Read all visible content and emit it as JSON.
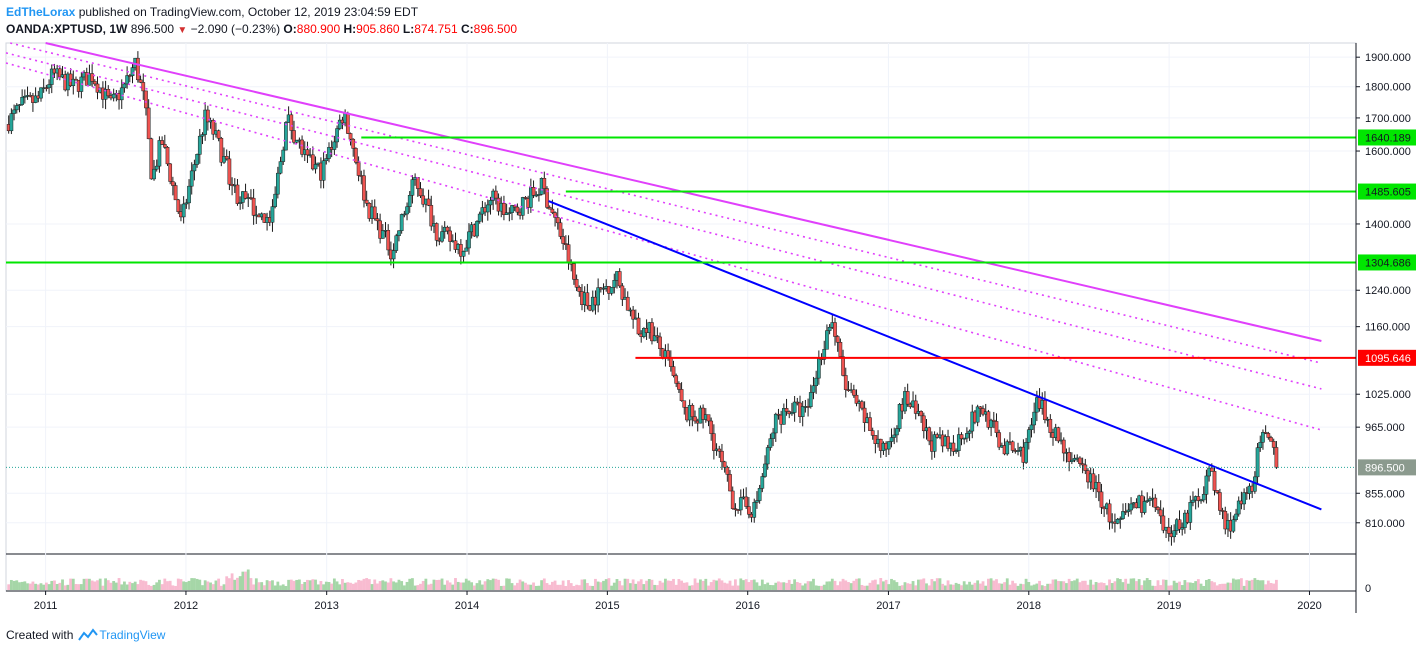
{
  "header": {
    "author": "EdTheLorax",
    "published": "published on TradingView.com, October 12, 2019 23:04:59 EDT",
    "symbol": "OANDA:XPTUSD, 1W",
    "last": "896.500",
    "change": "−2.090 (−0.23%)",
    "o_label": "O:",
    "o_val": "880.900",
    "h_label": "H:",
    "h_val": "905.860",
    "l_label": "L:",
    "l_val": "874.751",
    "c_label": "C:",
    "c_val": "896.500"
  },
  "footer": {
    "created_with": "Created with",
    "brand": "TradingView"
  },
  "colors": {
    "bull": "#26a69a",
    "bear": "#ef5350",
    "support": "#00e600",
    "resistance": "#ff0000",
    "fan": "#e040fb",
    "trend": "#0000ff",
    "grid": "#f0f3fa"
  },
  "chart_data": {
    "type": "candlestick",
    "symbol": "OANDA:XPTUSD",
    "interval": "1W",
    "last_price": 896.5,
    "x_axis": {
      "type": "date",
      "range": [
        "2010-09-20",
        "2020-05-01"
      ],
      "tick_labels": [
        "2011",
        "2012",
        "2013",
        "2014",
        "2015",
        "2016",
        "2017",
        "2018",
        "2019",
        "2020"
      ]
    },
    "y_axis": {
      "scale": "log",
      "range": [
        765,
        1950
      ],
      "tick_labels": [
        "1900.000",
        "1800.000",
        "1700.000",
        "1600.000",
        "1400.000",
        "1240.000",
        "1160.000",
        "1025.000",
        "965.000",
        "855.000",
        "810.000"
      ]
    },
    "volume_axis": {
      "tick_labels": [
        "0"
      ]
    },
    "price_path": [
      [
        "2010-09-20",
        1680
      ],
      [
        "2010-11-01",
        1740
      ],
      [
        "2010-12-15",
        1760
      ],
      [
        "2011-01-20",
        1840
      ],
      [
        "2011-03-15",
        1800
      ],
      [
        "2011-05-01",
        1840
      ],
      [
        "2011-06-20",
        1740
      ],
      [
        "2011-07-25",
        1800
      ],
      [
        "2011-08-22",
        1880
      ],
      [
        "2011-09-15",
        1750
      ],
      [
        "2011-10-05",
        1520
      ],
      [
        "2011-10-30",
        1630
      ],
      [
        "2011-12-20",
        1400
      ],
      [
        "2012-02-20",
        1700
      ],
      [
        "2012-03-15",
        1650
      ],
      [
        "2012-05-10",
        1480
      ],
      [
        "2012-07-20",
        1420
      ],
      [
        "2012-08-10",
        1400
      ],
      [
        "2012-09-20",
        1700
      ],
      [
        "2012-11-10",
        1570
      ],
      [
        "2012-12-20",
        1540
      ],
      [
        "2013-02-15",
        1720
      ],
      [
        "2013-04-15",
        1450
      ],
      [
        "2013-06-20",
        1330
      ],
      [
        "2013-08-20",
        1520
      ],
      [
        "2013-10-15",
        1380
      ],
      [
        "2013-12-20",
        1340
      ],
      [
        "2014-03-05",
        1470
      ],
      [
        "2014-04-20",
        1420
      ],
      [
        "2014-07-15",
        1500
      ],
      [
        "2014-09-10",
        1350
      ],
      [
        "2014-10-10",
        1250
      ],
      [
        "2014-11-10",
        1210
      ],
      [
        "2015-01-25",
        1270
      ],
      [
        "2015-03-25",
        1140
      ],
      [
        "2015-04-10",
        1170
      ],
      [
        "2015-06-10",
        1080
      ],
      [
        "2015-07-20",
        990
      ],
      [
        "2015-09-15",
        980
      ],
      [
        "2015-11-25",
        840
      ],
      [
        "2016-01-20",
        830
      ],
      [
        "2016-03-15",
        980
      ],
      [
        "2016-04-20",
        1000
      ],
      [
        "2016-06-01",
        990
      ],
      [
        "2016-08-05",
        1180
      ],
      [
        "2016-09-10",
        1040
      ],
      [
        "2016-11-15",
        960
      ],
      [
        "2016-12-20",
        920
      ],
      [
        "2017-02-15",
        1020
      ],
      [
        "2017-04-20",
        940
      ],
      [
        "2017-06-15",
        930
      ],
      [
        "2017-09-01",
        1000
      ],
      [
        "2017-10-25",
        930
      ],
      [
        "2017-12-20",
        920
      ],
      [
        "2018-01-25",
        1010
      ],
      [
        "2018-03-15",
        950
      ],
      [
        "2018-05-01",
        900
      ],
      [
        "2018-06-10",
        880
      ],
      [
        "2018-08-15",
        800
      ],
      [
        "2018-10-01",
        840
      ],
      [
        "2018-11-20",
        840
      ],
      [
        "2018-12-20",
        790
      ],
      [
        "2019-02-15",
        820
      ],
      [
        "2019-03-20",
        850
      ],
      [
        "2019-04-15",
        890
      ],
      [
        "2019-05-30",
        800
      ],
      [
        "2019-07-10",
        840
      ],
      [
        "2019-08-01",
        860
      ],
      [
        "2019-08-30",
        950
      ],
      [
        "2019-09-25",
        925
      ],
      [
        "2019-10-12",
        896.5
      ]
    ],
    "horizontal_levels": [
      {
        "value": 1640.189,
        "label": "1640.189",
        "color": "#00e600",
        "from": "2013-04-01"
      },
      {
        "value": 1485.605,
        "label": "1485.605",
        "color": "#00e600",
        "from": "2014-09-15"
      },
      {
        "value": 1304.686,
        "label": "1304.686",
        "color": "#00e600",
        "from": "2010-09-20"
      },
      {
        "value": 1095.646,
        "label": "1095.646",
        "color": "#ff0000",
        "from": "2015-03-15"
      }
    ],
    "trendlines": [
      {
        "style": "solid",
        "color": "#e040fb",
        "p1": [
          "2011-01-01",
          1950
        ],
        "p2": [
          "2020-02-01",
          1130
        ]
      },
      {
        "style": "dotted",
        "color": "#e040fb",
        "p1": [
          "2010-10-01",
          1950
        ],
        "p2": [
          "2020-02-01",
          1085
        ]
      },
      {
        "style": "dotted",
        "color": "#e040fb",
        "p1": [
          "2010-09-20",
          1915
        ],
        "p2": [
          "2020-02-01",
          1035
        ]
      },
      {
        "style": "dotted",
        "color": "#e040fb",
        "p1": [
          "2010-09-20",
          1880
        ],
        "p2": [
          "2020-02-01",
          960
        ]
      },
      {
        "style": "solid",
        "color": "#0000ff",
        "p1": [
          "2014-08-01",
          1460
        ],
        "p2": [
          "2020-02-01",
          830
        ]
      }
    ],
    "last_price_label": "896.500"
  }
}
